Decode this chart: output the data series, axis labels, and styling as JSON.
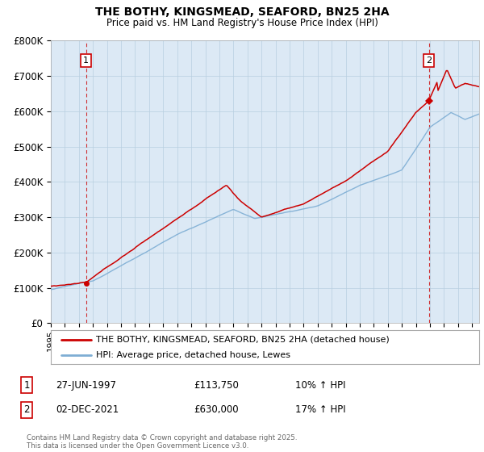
{
  "title": "THE BOTHY, KINGSMEAD, SEAFORD, BN25 2HA",
  "subtitle": "Price paid vs. HM Land Registry's House Price Index (HPI)",
  "legend_line1": "THE BOTHY, KINGSMEAD, SEAFORD, BN25 2HA (detached house)",
  "legend_line2": "HPI: Average price, detached house, Lewes",
  "footer": "Contains HM Land Registry data © Crown copyright and database right 2025.\nThis data is licensed under the Open Government Licence v3.0.",
  "marker1_label": "1",
  "marker1_date": "27-JUN-1997",
  "marker1_price": "£113,750",
  "marker1_hpi": "10% ↑ HPI",
  "marker2_label": "2",
  "marker2_date": "02-DEC-2021",
  "marker2_price": "£630,000",
  "marker2_hpi": "17% ↑ HPI",
  "red_color": "#cc0000",
  "blue_color": "#7eaed4",
  "bg_color": "#dce9f5",
  "grid_color": "#b8cfe0",
  "ylim": [
    0,
    800000
  ],
  "xlim_start": 1995.0,
  "xlim_end": 2025.5,
  "yticks": [
    0,
    100000,
    200000,
    300000,
    400000,
    500000,
    600000,
    700000,
    800000
  ]
}
